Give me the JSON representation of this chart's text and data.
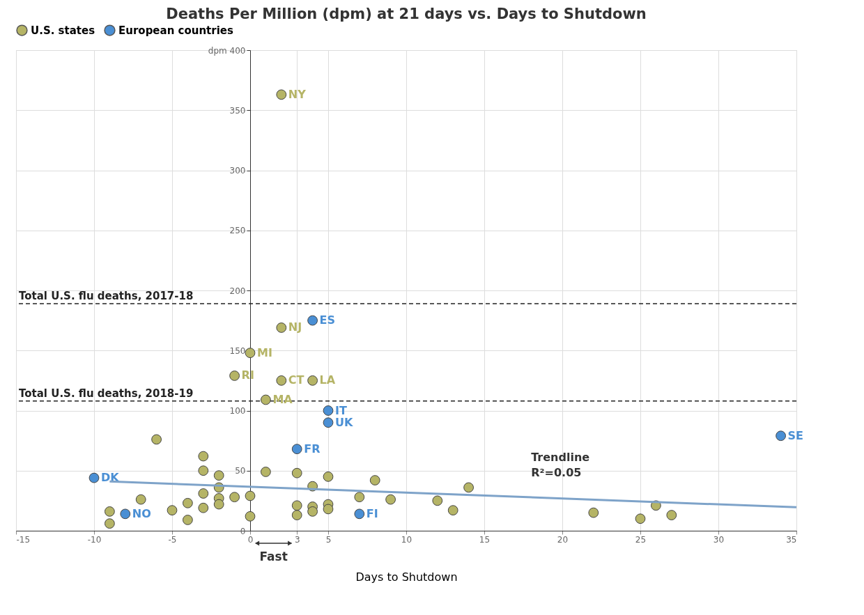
{
  "chart_data": {
    "type": "scatter",
    "title": "Deaths Per Million (dpm) at 21 days vs. Days to Shutdown",
    "xlabel": "Days to Shutdown",
    "series": [
      {
        "name": "U.S. states",
        "color": "#b5b466",
        "marker": "circle",
        "x": [
          2,
          2,
          0,
          -1,
          2,
          4,
          1,
          -6,
          -3,
          -3,
          -2,
          -2,
          -3,
          -2,
          -2,
          -1,
          0,
          0,
          -3,
          -4,
          -4,
          -5,
          -7,
          -9,
          -9,
          1,
          3,
          3,
          3,
          4,
          4,
          4,
          5,
          5,
          5,
          7,
          8,
          9,
          12,
          13,
          14,
          22,
          25,
          26,
          27
        ],
        "values": [
          363,
          169,
          148,
          129,
          125,
          125,
          109,
          76,
          62,
          50,
          46,
          36,
          31,
          27,
          22,
          28,
          29,
          12,
          19,
          23,
          9,
          17,
          26,
          16,
          6,
          49,
          48,
          21,
          13,
          37,
          20,
          16,
          45,
          22,
          18,
          28,
          42,
          26,
          25,
          17,
          36,
          15,
          10,
          21,
          13
        ],
        "value_labels": [
          "NY",
          "NJ",
          "MI",
          "RI",
          "CT",
          "LA",
          "MA",
          null,
          null,
          null,
          null,
          null,
          null,
          null,
          null,
          null,
          null,
          null,
          null,
          null,
          null,
          null,
          null,
          null,
          null,
          null,
          null,
          null,
          null,
          null,
          null,
          null,
          null,
          null,
          null,
          null,
          null,
          null,
          null,
          null,
          null,
          null,
          null,
          null,
          null
        ]
      },
      {
        "name": "European countries",
        "color": "#4a8fd4",
        "marker": "circle",
        "x": [
          4,
          5,
          5,
          3,
          -10,
          -8,
          7,
          34
        ],
        "values": [
          175,
          100,
          90,
          68,
          44,
          14,
          14,
          79
        ],
        "value_labels": [
          "ES",
          "IT",
          "UK",
          "FR",
          "DK",
          "NO",
          "FI",
          "SE"
        ]
      },
      {
        "type": "line",
        "color": "#7ea3c9",
        "x": [
          -9,
          35
        ],
        "values": [
          41,
          19.5
        ]
      }
    ],
    "ref_lines": [
      {
        "axis": "y",
        "value": 189,
        "label": "Total U.S. flu deaths, 2017-18",
        "color": "#222222",
        "line_style": "dashed"
      },
      {
        "axis": "y",
        "value": 108,
        "label": "Total U.S. flu deaths, 2018-19",
        "color": "#222222",
        "line_style": "dashed"
      }
    ],
    "annotations": [
      "Trendline\nR²=0.05",
      "Fast"
    ],
    "xlim": [
      -15,
      35
    ],
    "xticks": [
      -15,
      -10,
      -5,
      0,
      3,
      5,
      10,
      15,
      20,
      25,
      30,
      35
    ],
    "ylim": [
      0,
      400
    ],
    "yticks": [
      0,
      50,
      100,
      150,
      200,
      250,
      300,
      350,
      {
        "value": 400,
        "label": "dpm 400"
      }
    ],
    "grid": true,
    "legend": "top"
  }
}
